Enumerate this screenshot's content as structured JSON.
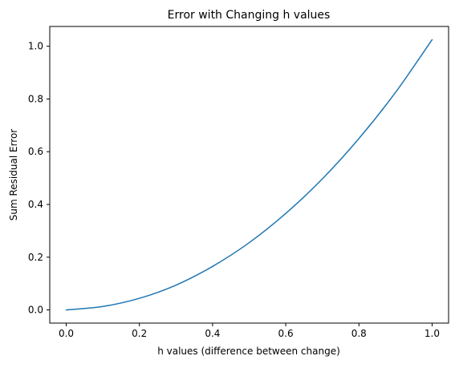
{
  "chart_data": {
    "type": "line",
    "title": "Error with Changing h values",
    "xlabel": "h values (difference between change)",
    "ylabel": "Sum Residual Error",
    "xlim": [
      -0.045,
      1.045
    ],
    "ylim": [
      -0.05,
      1.075
    ],
    "x_ticks": [
      0.0,
      0.2,
      0.4,
      0.6,
      0.8,
      1.0
    ],
    "x_tick_labels": [
      "0.0",
      "0.2",
      "0.4",
      "0.6",
      "0.8",
      "1.0"
    ],
    "y_ticks": [
      0.0,
      0.2,
      0.4,
      0.6,
      0.8,
      1.0
    ],
    "y_tick_labels": [
      "0.0",
      "0.2",
      "0.4",
      "0.6",
      "0.8",
      "1.0"
    ],
    "grid": false,
    "legend": "none",
    "series": [
      {
        "color": "#1f77b4",
        "x": [
          0.0,
          0.1,
          0.2,
          0.3,
          0.4,
          0.5,
          0.6,
          0.7,
          0.8,
          0.9,
          1.0
        ],
        "y": [
          0.0,
          0.013,
          0.044,
          0.094,
          0.165,
          0.255,
          0.366,
          0.497,
          0.65,
          0.825,
          1.025
        ]
      }
    ]
  }
}
